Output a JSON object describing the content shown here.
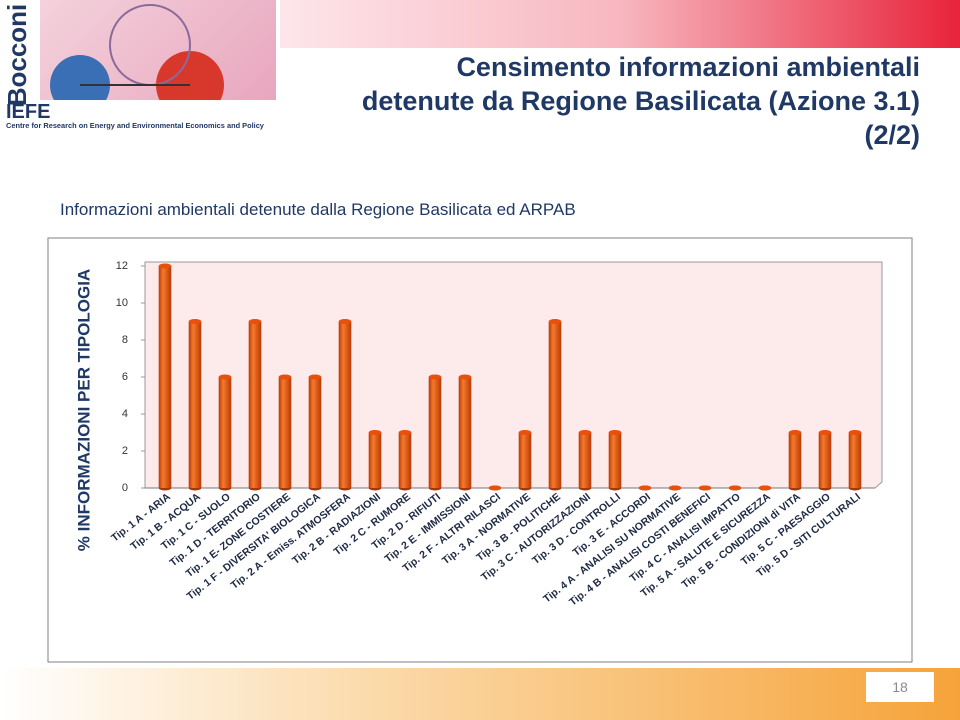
{
  "logo": {
    "name": "Bocconi",
    "acronym": "IEFE",
    "subtitle": "Centre for Research on Energy and Environmental Economics and Policy"
  },
  "title_lines": [
    "Censimento informazioni ambientali",
    "detenute da Regione Basilicata (Azione 3.1)",
    "(2/2)"
  ],
  "subtitle": "Informazioni ambientali detenute dalla Regione Basilicata ed ARPAB",
  "page_number": "18",
  "chart_data": {
    "type": "bar",
    "y_label": "% INFORMAZIONI PER TIPOLOGIA",
    "categories": [
      "Tip. 1 A - ARIA",
      "Tip. 1 B - ACQUA",
      "Tip. 1 C - SUOLO",
      "Tip. 1 D - TERRITORIO",
      "Tip. 1 E- ZONE COSTIERE",
      "Tip. 1 F - DIVERSITA' BIOLOGICA",
      "Tip. 2 A - Emiss. ATMOSFERA",
      "Tip. 2 B - RADIAZIONI",
      "Tip. 2 C - RUMORE",
      "Tip. 2 D - RIFIUTI",
      "Tip. 2 E - IMMISSIONI",
      "Tip. 2 F - ALTRI RILASCI",
      "Tip. 3 A - NORMATIVE",
      "Tip. 3 B - POLITICHE",
      "Tip. 3 C - AUTORIZZAZIONI",
      "Tip. 3 D - CONTROLLI",
      "Tip. 3 E - ACCORDI",
      "Tip. 4 A - ANALISI SU NORMATIVE",
      "Tip. 4 B - ANALISI COSTI BENEFICI",
      "Tip. 4 C - ANALISI IMPATTO",
      "Tip. 5 A - SALUTE E SICUREZZA",
      "Tip. 5 B - CONDIZIONI di VITA",
      "Tip. 5 C - PAESAGGIO",
      "Tip. 5 D - SITI CULTURALI"
    ],
    "values": [
      12,
      9,
      6,
      9,
      6,
      6,
      9,
      3,
      3,
      6,
      6,
      0,
      3,
      9,
      3,
      3,
      0,
      0,
      0,
      0,
      0,
      3,
      3,
      3
    ],
    "color": "#e8500c",
    "ylim": [
      0,
      12
    ],
    "yticks": [
      0,
      2,
      4,
      6,
      8,
      10,
      12
    ]
  }
}
